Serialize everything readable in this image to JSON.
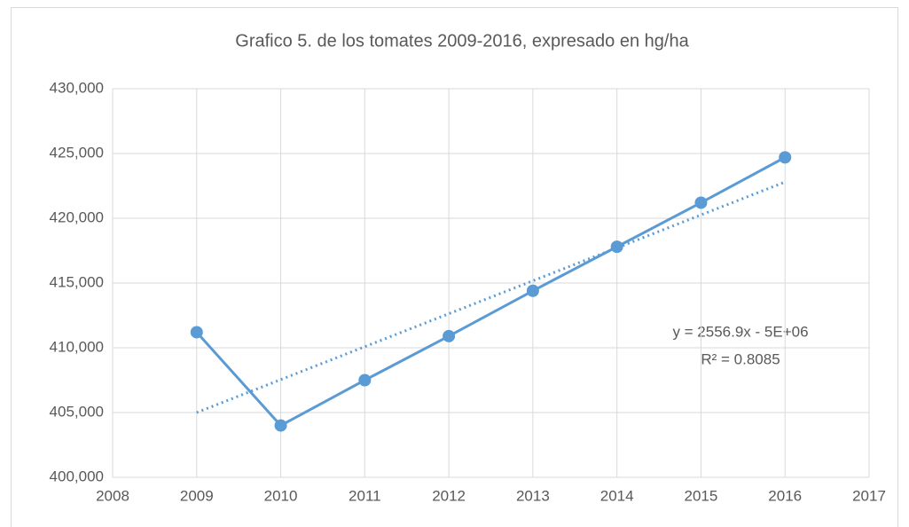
{
  "chart_data": {
    "type": "line",
    "title": "Grafico 5.  de los tomates 2009-2016, expresado en hg/ha",
    "x": [
      2009,
      2010,
      2011,
      2012,
      2013,
      2014,
      2015,
      2016
    ],
    "series": [
      {
        "color": "#5b9bd5",
        "values": [
          411200,
          404000,
          407500,
          410900,
          414400,
          417800,
          421200,
          424700
        ]
      }
    ],
    "trendline": {
      "color": "#5b9bd5",
      "x": [
        2009,
        2016
      ],
      "values": [
        405000,
        422800
      ]
    },
    "annotations": [
      "y = 2556.9x - 5E+06",
      "R² = 0.8085"
    ],
    "xlim": [
      2008,
      2017
    ],
    "xticks": [
      2008,
      2009,
      2010,
      2011,
      2012,
      2013,
      2014,
      2015,
      2016,
      2017
    ],
    "ylim": [
      400000,
      430000
    ],
    "yticks": [
      {
        "value": 400000,
        "label": "400,000"
      },
      {
        "value": 405000,
        "label": "405,000"
      },
      {
        "value": 410000,
        "label": "410,000"
      },
      {
        "value": 415000,
        "label": "415,000"
      },
      {
        "value": 420000,
        "label": "420,000"
      },
      {
        "value": 425000,
        "label": "425,000"
      },
      {
        "value": 430000,
        "label": "430,000"
      }
    ],
    "grid": true
  }
}
